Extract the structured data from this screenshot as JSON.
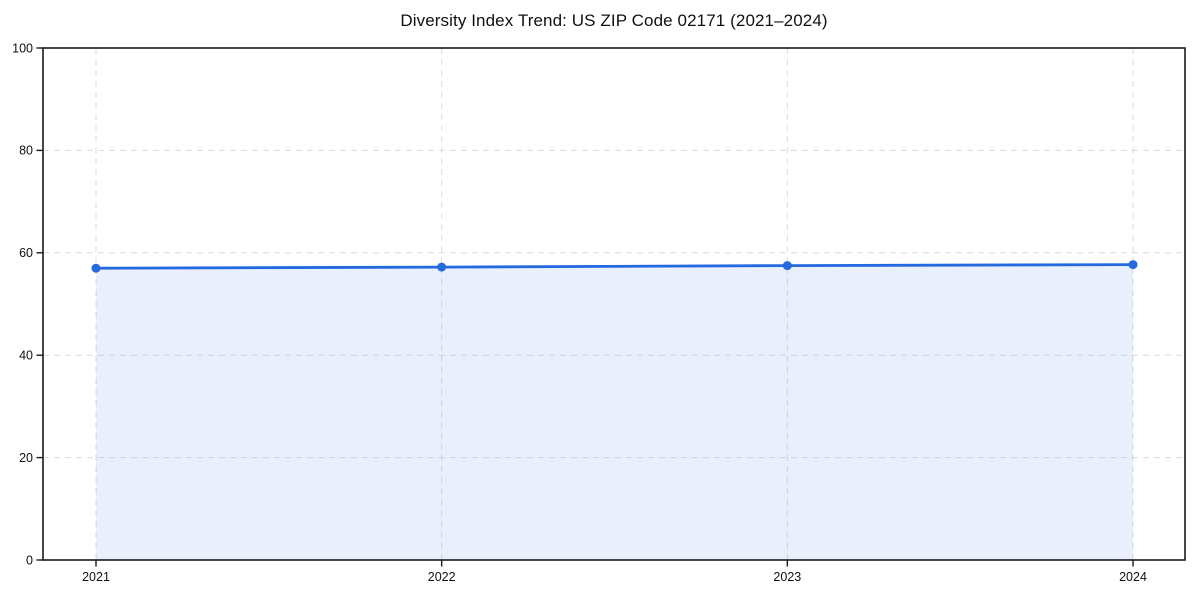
{
  "chart_data": {
    "type": "line",
    "title": "Diversity Index Trend: US ZIP Code 02171 (2021–2024)",
    "x": [
      2021,
      2022,
      2023,
      2024
    ],
    "series": [
      {
        "name": "Diversity Index",
        "values": [
          57.0,
          57.2,
          57.5,
          57.7
        ]
      }
    ],
    "xlabel": "",
    "ylabel": "",
    "ylim": [
      0,
      100
    ],
    "yticks": [
      0,
      20,
      40,
      60,
      80,
      100
    ],
    "xticks": [
      "2021",
      "2022",
      "2023",
      "2024"
    ],
    "grid": "dashed",
    "legend": "none",
    "area_fill": true,
    "style": {
      "line_color": "#2569e0",
      "marker_color": "#2569e0",
      "fill_color": "rgba(37,105,224,0.10)",
      "grid_color": "#dcdcdc",
      "axis_color": "#1a1a1a",
      "background": "#ffffff"
    }
  }
}
